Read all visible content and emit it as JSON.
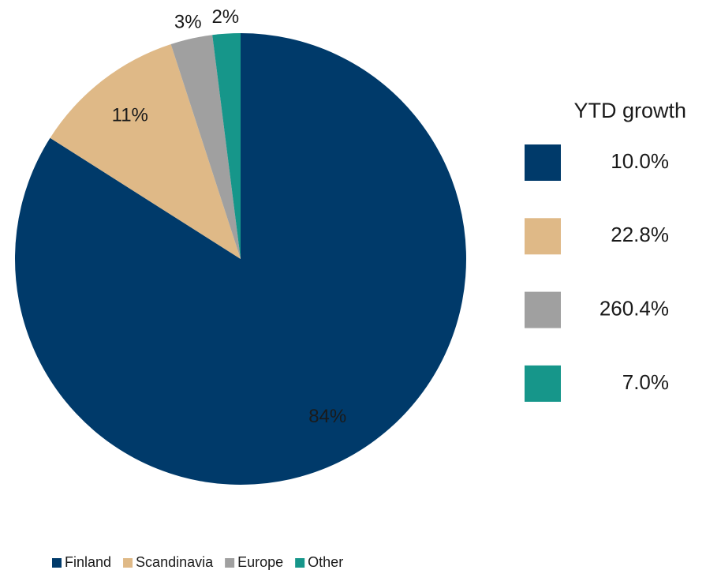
{
  "chart_data": {
    "type": "pie",
    "categories": [
      "Finland",
      "Scandinavia",
      "Europe",
      "Other"
    ],
    "values": [
      84,
      11,
      3,
      2
    ],
    "value_labels": [
      "84%",
      "11%",
      "3%",
      "2%"
    ],
    "colors": [
      "#003a6a",
      "#dfb987",
      "#a0a0a0",
      "#16968a"
    ],
    "legend": "bottom",
    "growth_title": "YTD growth",
    "growth_labels": [
      "10.0%",
      "22.8%",
      "260.4%",
      "7.0%"
    ]
  }
}
